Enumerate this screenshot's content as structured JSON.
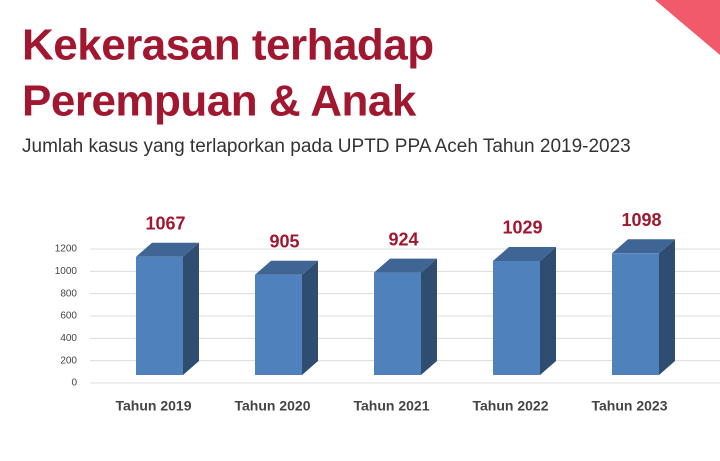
{
  "chart_data": {
    "type": "bar3d",
    "title": [
      "Kekerasan terhadap",
      "Perempuan & Anak"
    ],
    "subtitle": "Jumlah kasus yang terlaporkan pada UPTD PPA Aceh Tahun 2019-2023",
    "categories": [
      "Tahun 2019",
      "Tahun 2020",
      "Tahun 2021",
      "Tahun 2022",
      "Tahun 2023"
    ],
    "values": [
      1067,
      905,
      924,
      1029,
      1098
    ],
    "color": "#4f81bd",
    "ylim": [
      0,
      1200
    ],
    "yticks": [
      0,
      200,
      400,
      600,
      800,
      1000,
      1200
    ],
    "grid": true
  }
}
